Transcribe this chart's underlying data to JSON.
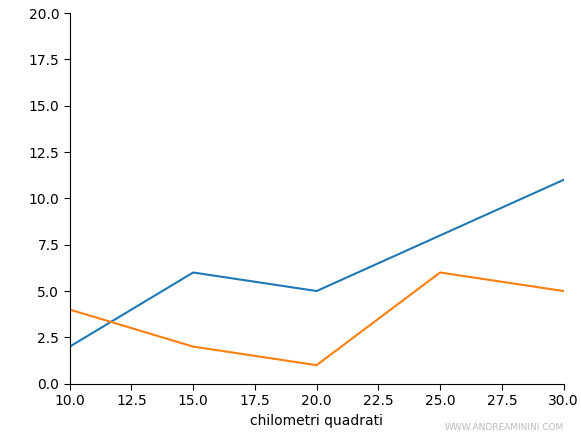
{
  "x": [
    10,
    15,
    20,
    25,
    30
  ],
  "blue_y": [
    2,
    6,
    5,
    8,
    11
  ],
  "orange_y": [
    4,
    2,
    1,
    6,
    5
  ],
  "blue_color": "#1f77b4",
  "orange_color": "#ff7f0e",
  "xlabel": "chilometri quadrati",
  "xlim": [
    10,
    30
  ],
  "ylim": [
    0,
    20
  ],
  "watermark": "WWW.ANDREAMININI.COM",
  "watermark_color": "#bbbbbb",
  "watermark_fontsize": 6.5,
  "bg_color": "#ffffff"
}
